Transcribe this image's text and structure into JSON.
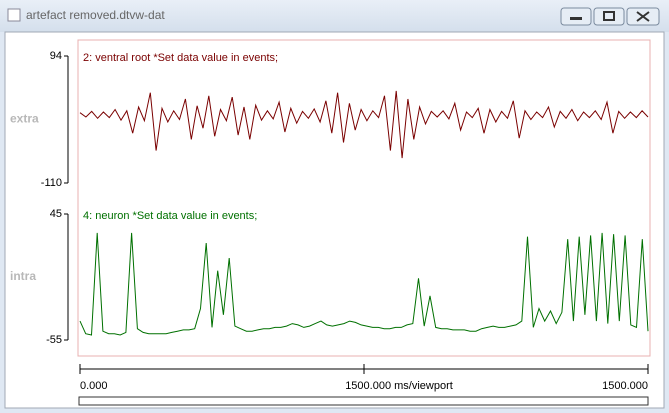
{
  "window": {
    "title": "artefact removed.dtvw-dat"
  },
  "channels": [
    {
      "label": "extra",
      "title": "2: ventral root *Set data value in events;",
      "color": "#7a0000",
      "ylim": [
        -110,
        94
      ],
      "yticks": [
        94,
        -110
      ],
      "values": [
        3,
        -4,
        5,
        -6,
        4,
        -5,
        8,
        -9,
        6,
        -30,
        12,
        -10,
        35,
        -58,
        10,
        -12,
        6,
        -8,
        25,
        -40,
        14,
        -22,
        30,
        -35,
        8,
        -10,
        28,
        -33,
        12,
        -40,
        15,
        -9,
        6,
        -7,
        20,
        -28,
        10,
        -14,
        5,
        -6,
        9,
        -12,
        22,
        -30,
        35,
        -45,
        18,
        -25,
        8,
        -10,
        6,
        -5,
        30,
        -58,
        38,
        -70,
        25,
        -40,
        12,
        -15,
        5,
        -4,
        6,
        -7,
        18,
        -25,
        4,
        -5,
        10,
        -30,
        8,
        -12,
        5,
        -6,
        22,
        -38,
        6,
        -8,
        4,
        -5,
        12,
        -20,
        5,
        -6,
        8,
        -10,
        4,
        -5,
        6,
        -8,
        20,
        -30,
        5,
        -6,
        4,
        -5,
        6,
        -4
      ]
    },
    {
      "label": "intra",
      "title": "4: neuron *Set data value in events;",
      "color": "#007000",
      "ylim": [
        -55,
        45
      ],
      "yticks": [
        45,
        -55
      ],
      "values": [
        -40,
        -50,
        -51,
        30,
        -48,
        -50,
        -50,
        -51,
        -49,
        30,
        -46,
        -49,
        -50,
        -50,
        -50,
        -50,
        -49,
        -48,
        -47,
        -47,
        -46,
        -30,
        22,
        -45,
        0,
        -35,
        10,
        -44,
        -46,
        -48,
        -48,
        -47,
        -46,
        -46,
        -45,
        -45,
        -44,
        -42,
        -43,
        -45,
        -44,
        -42,
        -40,
        -43,
        -44,
        -43,
        -42,
        -40,
        -41,
        -43,
        -44,
        -45,
        -45,
        -46,
        -46,
        -45,
        -45,
        -43,
        -42,
        -6,
        -44,
        -20,
        -45,
        -46,
        -46,
        -47,
        -47,
        -47,
        -48,
        -48,
        -46,
        -45,
        -44,
        -45,
        -45,
        -44,
        -43,
        -40,
        27,
        -45,
        -30,
        -40,
        -32,
        -42,
        -33,
        25,
        -40,
        27,
        -35,
        28,
        -40,
        30,
        -42,
        29,
        -40,
        28,
        -43,
        -45,
        25,
        -48
      ]
    }
  ],
  "x_axis": {
    "xlim": [
      0,
      1500
    ],
    "xticks": [
      {
        "value": 0,
        "label": "0.000"
      },
      {
        "value": 1500,
        "label": "1500.000"
      }
    ],
    "viewport_label": "1500.000 ms/viewport"
  }
}
